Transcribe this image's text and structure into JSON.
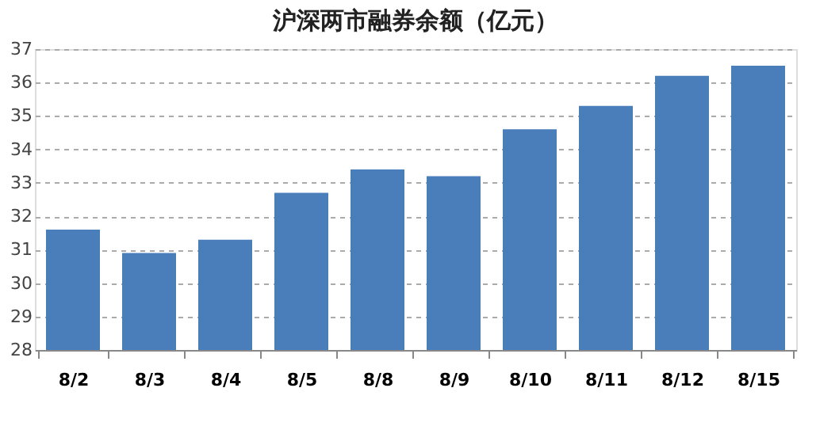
{
  "chart_data": {
    "type": "bar",
    "title": "沪深两市融券余额（亿元）",
    "categories": [
      "8/2",
      "8/3",
      "8/4",
      "8/5",
      "8/8",
      "8/9",
      "8/10",
      "8/11",
      "8/12",
      "8/15"
    ],
    "values": [
      31.6,
      30.9,
      31.3,
      32.7,
      33.4,
      33.2,
      34.6,
      35.3,
      36.2,
      36.5
    ],
    "color": "#4a7ebb",
    "ylim": [
      28,
      37
    ],
    "yticks": [
      28,
      29,
      30,
      31,
      32,
      33,
      34,
      35,
      36,
      37
    ],
    "grid": "y"
  }
}
